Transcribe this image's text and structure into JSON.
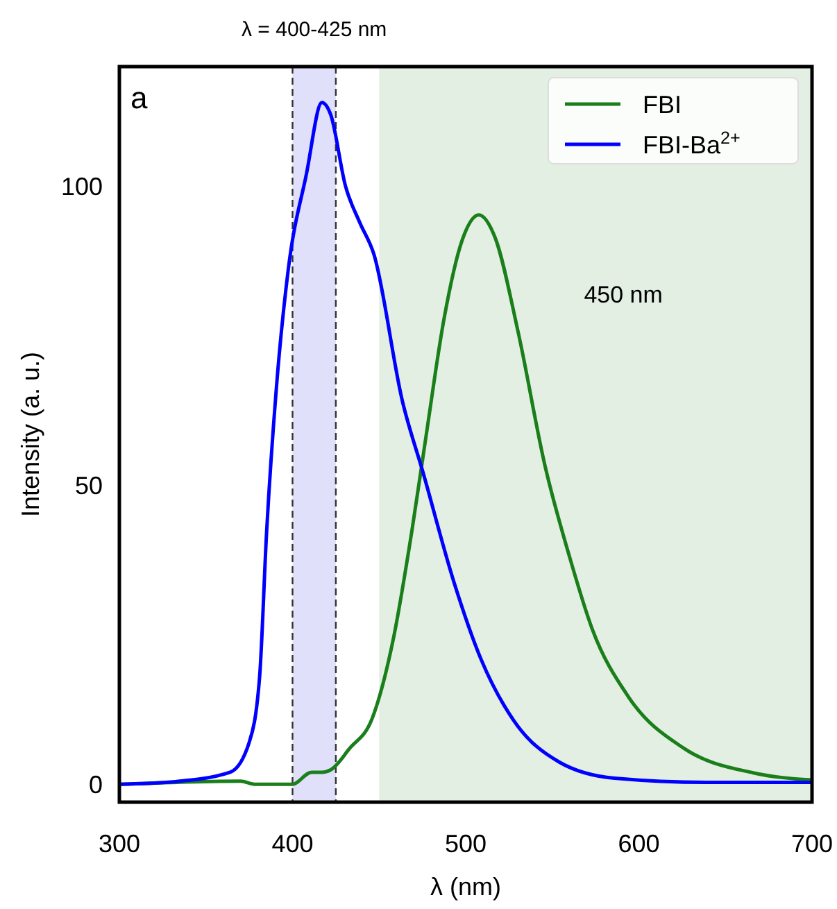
{
  "chart_data": {
    "type": "line",
    "xlabel": "λ (nm)",
    "ylabel": "Intensity (a. u.)",
    "xlim": [
      300,
      700
    ],
    "ylim": [
      -3,
      120
    ],
    "xticks": [
      300,
      400,
      500,
      600,
      700
    ],
    "yticks": [
      0,
      50,
      100
    ],
    "grid": false,
    "legend": "top right",
    "line_style": "solid",
    "marker": "none",
    "annotations": [
      "a"
    ],
    "bands": [
      {
        "axis": "x",
        "from": 400,
        "to": 425,
        "label": "λ = 400-425 nm",
        "color": "#e0e0fa"
      },
      {
        "axis": "x",
        "from": 450,
        "to": 700,
        "label": "450 nm",
        "color": "#e3efe3"
      }
    ],
    "ref_lines": [
      {
        "axis": "x",
        "value": 400,
        "line_style": "dashed",
        "color": "#333333"
      },
      {
        "axis": "x",
        "value": 425,
        "line_style": "dashed",
        "color": "#333333"
      }
    ],
    "series": [
      {
        "name": "FBI",
        "color": "#1a7f1a",
        "x": [
          300,
          370,
          378,
          400,
          411,
          417,
          422,
          433,
          446,
          458,
          469,
          477,
          487.6,
          498,
          507.6,
          517,
          530,
          546,
          560,
          573,
          594,
          626,
          666,
          700
        ],
        "values": [
          0,
          0.5,
          0,
          0,
          2,
          2,
          2.4,
          6,
          11,
          24,
          42.5,
          58,
          78,
          91,
          95.2,
          91.4,
          76,
          53,
          38,
          26,
          14.6,
          6,
          1.9,
          0.7
        ]
      },
      {
        "name": "FBI-Ba$^{2+}$",
        "color": "#0000ff",
        "x": [
          300,
          331,
          364,
          375,
          381,
          385,
          390.6,
          397.5,
          408,
          417,
          422,
          430.6,
          438.7,
          447,
          463.5,
          475.5,
          493,
          509,
          527.6,
          554,
          586,
          640,
          700
        ],
        "values": [
          0,
          0.4,
          2,
          7,
          18,
          42,
          66,
          86,
          102,
          114,
          112,
          100,
          94,
          88.6,
          64,
          52,
          34,
          20.8,
          10.7,
          3.7,
          1,
          0.3,
          0.3
        ]
      }
    ]
  }
}
